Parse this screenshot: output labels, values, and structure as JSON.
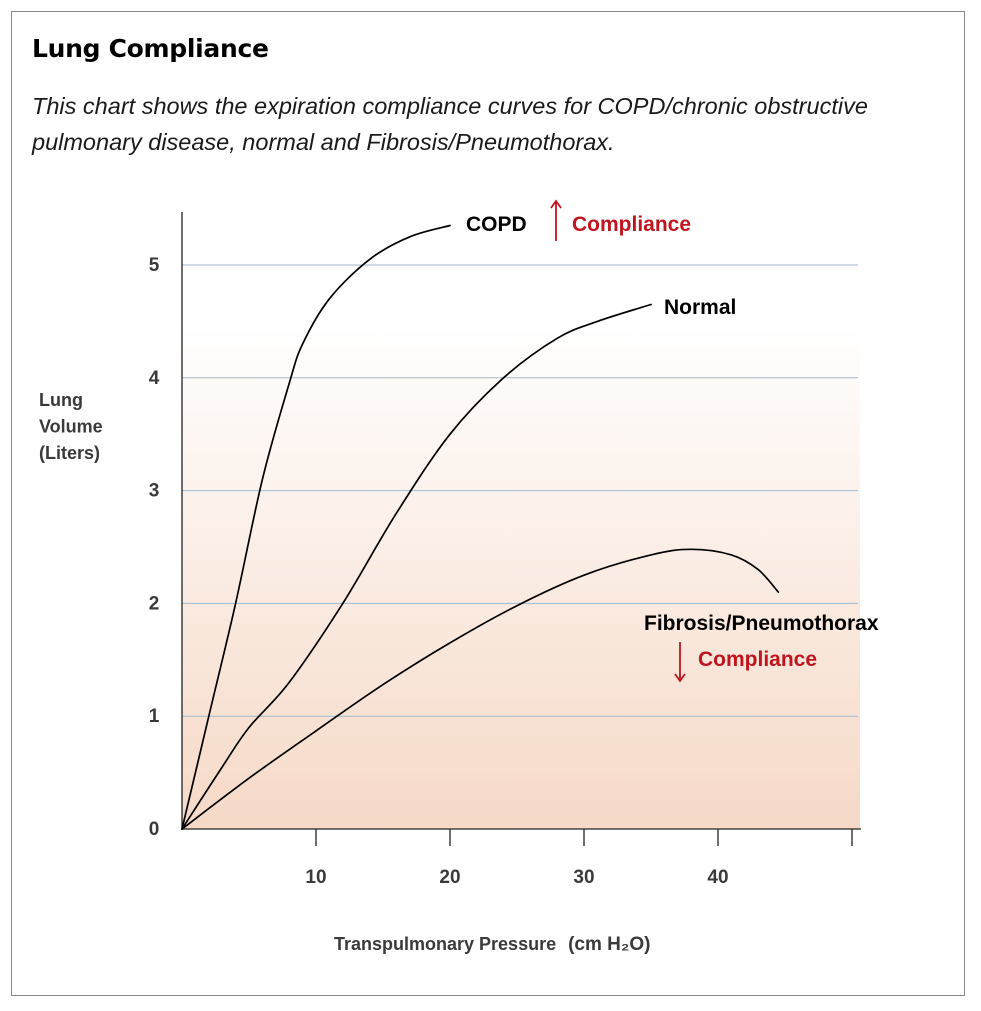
{
  "header": {
    "title": "Lung Compliance",
    "subtitle": "This chart shows the expiration compliance curves for COPD/chronic obstructive pulmonary disease, normal and Fibrosis/Pneumothorax."
  },
  "colors": {
    "accent": "#c0141e",
    "gridline": "#9fbad0",
    "gradient_top": "#ffffff",
    "gradient_bottom": "#f6d9c7"
  },
  "chart_data": {
    "type": "line",
    "xlabel": "Transpulmonary Pressure",
    "xlabel_unit": "(cm H₂O)",
    "ylabel_lines": [
      "Lung",
      "Volume",
      "(Liters)"
    ],
    "xlim": [
      0,
      50
    ],
    "ylim": [
      0,
      5.5
    ],
    "x_ticks": [
      10,
      20,
      30,
      40
    ],
    "y_ticks": [
      0,
      1,
      2,
      3,
      4,
      5
    ],
    "grid": "horizontal",
    "series": [
      {
        "name": "COPD",
        "x": [
          0,
          2,
          4,
          6,
          8,
          9,
          11,
          14,
          17,
          20
        ],
        "y": [
          0,
          1.0,
          2.0,
          3.1,
          3.95,
          4.3,
          4.7,
          5.05,
          5.25,
          5.35
        ]
      },
      {
        "name": "Normal",
        "x": [
          0,
          3,
          5,
          8,
          12,
          16,
          20,
          24,
          28,
          31,
          35
        ],
        "y": [
          0,
          0.55,
          0.9,
          1.3,
          2.0,
          2.8,
          3.5,
          4.0,
          4.35,
          4.5,
          4.65
        ]
      },
      {
        "name": "Fibrosis/Pneumothorax",
        "x": [
          0,
          5,
          10,
          15,
          20,
          25,
          30,
          35,
          38,
          41,
          43,
          44.5
        ],
        "y": [
          0,
          0.45,
          0.87,
          1.28,
          1.65,
          1.98,
          2.25,
          2.43,
          2.48,
          2.43,
          2.3,
          2.1
        ]
      }
    ],
    "annotations": [
      {
        "series": "COPD",
        "label": "COPD",
        "arrow": "up",
        "note": "Compliance"
      },
      {
        "series": "Normal",
        "label": "Normal"
      },
      {
        "series": "Fibrosis/Pneumothorax",
        "label": "Fibrosis/Pneumothorax",
        "arrow": "down",
        "note": "Compliance"
      }
    ]
  }
}
